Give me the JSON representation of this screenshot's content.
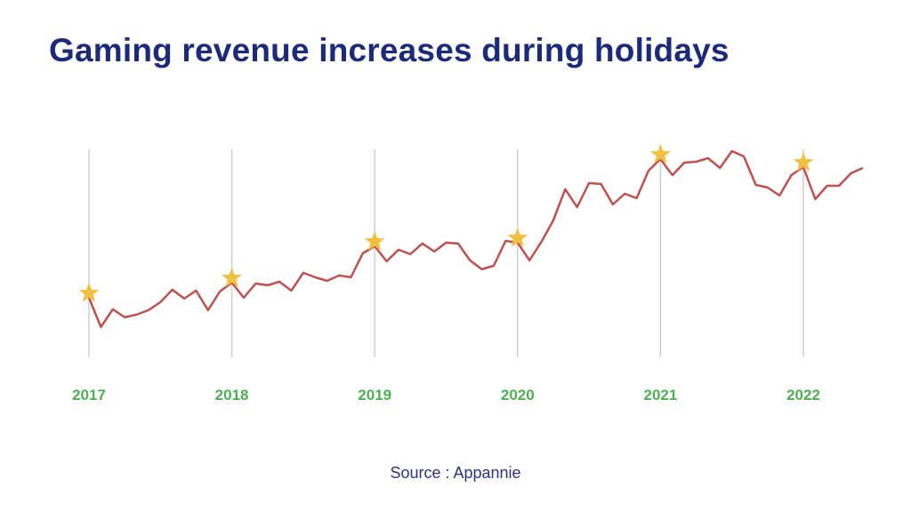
{
  "chart_data": {
    "type": "line",
    "title": "Gaming revenue increases during holidays",
    "source": "Source : Appannie",
    "xlabel": "",
    "ylabel": "",
    "x_tick_labels": [
      "2017",
      "2018",
      "2019",
      "2020",
      "2021",
      "2022"
    ],
    "grid": "vertical lines at each year",
    "legend": "none",
    "y_axis_printed": false,
    "x": [
      "2017-01",
      "2017-02",
      "2017-03",
      "2017-04",
      "2017-05",
      "2017-06",
      "2017-07",
      "2017-08",
      "2017-09",
      "2017-10",
      "2017-11",
      "2017-12",
      "2018-01",
      "2018-02",
      "2018-03",
      "2018-04",
      "2018-05",
      "2018-06",
      "2018-07",
      "2018-08",
      "2018-09",
      "2018-10",
      "2018-11",
      "2018-12",
      "2019-01",
      "2019-02",
      "2019-03",
      "2019-04",
      "2019-05",
      "2019-06",
      "2019-07",
      "2019-08",
      "2019-09",
      "2019-10",
      "2019-11",
      "2019-12",
      "2020-01",
      "2020-02",
      "2020-03",
      "2020-04",
      "2020-05",
      "2020-06",
      "2020-07",
      "2020-08",
      "2020-09",
      "2020-10",
      "2020-11",
      "2020-12",
      "2021-01",
      "2021-02",
      "2021-03",
      "2021-04",
      "2021-05",
      "2021-06",
      "2021-07",
      "2021-08",
      "2021-09",
      "2021-10",
      "2021-11",
      "2021-12",
      "2022-01",
      "2022-02",
      "2022-03",
      "2022-04",
      "2022-05",
      "2022-06"
    ],
    "series": [
      {
        "values": [
          65,
          32,
          52,
          43,
          46,
          51,
          60,
          74,
          64,
          73,
          51,
          72,
          82,
          65,
          81,
          79,
          83,
          73,
          93,
          88,
          84,
          90,
          88,
          115,
          123,
          106,
          119,
          114,
          126,
          117,
          127,
          126,
          107,
          97,
          101,
          129,
          127,
          107,
          128,
          152,
          187,
          167,
          194,
          193,
          170,
          182,
          177,
          208,
          221,
          203,
          217,
          218,
          222,
          211,
          230,
          224,
          192,
          189,
          180,
          203,
          212,
          176,
          191,
          191,
          205,
          211
        ],
        "color": "#c0504d"
      }
    ],
    "highlighted_points": {
      "marker": "star",
      "color": "#f2c040",
      "x": [
        "2017-01",
        "2018-01",
        "2019-01",
        "2020-01",
        "2021-01",
        "2022-01"
      ]
    },
    "colors": {
      "title": "#1c2a7a",
      "tick_labels": "#4caf50",
      "gridlines": "#d0d0d0",
      "source": "#2a3580"
    }
  }
}
